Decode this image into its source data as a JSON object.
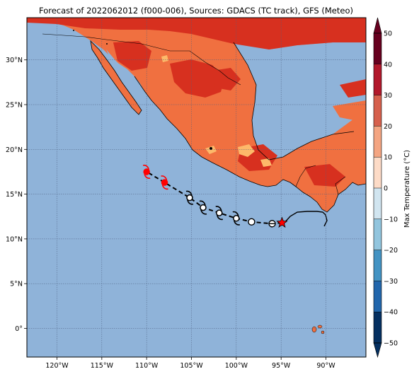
{
  "title": "Forecast of 2022062012 (f000-006), Sources: GDACS (TC track), GFS (Meteo)",
  "map": {
    "lon_ticks": [
      {
        "value": -120,
        "label": "120°W"
      },
      {
        "value": -115,
        "label": "115°W"
      },
      {
        "value": -110,
        "label": "110°W"
      },
      {
        "value": -105,
        "label": "105°W"
      },
      {
        "value": -100,
        "label": "100°W"
      },
      {
        "value": -95,
        "label": "95°W"
      },
      {
        "value": -90,
        "label": "90°W"
      }
    ],
    "lat_ticks": [
      {
        "value": 30,
        "label": "30°N"
      },
      {
        "value": 25,
        "label": "25°N"
      },
      {
        "value": 20,
        "label": "20°N"
      },
      {
        "value": 15,
        "label": "15°N"
      },
      {
        "value": 10,
        "label": "10°N"
      },
      {
        "value": 5,
        "label": "5°N"
      },
      {
        "value": 0,
        "label": "0°"
      }
    ],
    "ocean_color": "#8fb3d9",
    "land_color": "#f07040",
    "hot_color": "#d7301f",
    "warm_color": "#fdb96a"
  },
  "track": {
    "current_position": {
      "lon": -94.9,
      "lat": 11.8,
      "marker": "star"
    },
    "points": [
      {
        "lon": -96.0,
        "lat": 11.7,
        "symbol": "circle-minus",
        "color": "#000000"
      },
      {
        "lon": -98.3,
        "lat": 11.9,
        "symbol": "circle",
        "color": "#000000"
      },
      {
        "lon": -100.0,
        "lat": 12.3,
        "symbol": "hurricane",
        "color": "#000000"
      },
      {
        "lon": -101.9,
        "lat": 12.9,
        "symbol": "hurricane",
        "color": "#000000"
      },
      {
        "lon": -103.7,
        "lat": 13.5,
        "symbol": "hurricane",
        "color": "#000000"
      },
      {
        "lon": -105.2,
        "lat": 14.6,
        "symbol": "hurricane",
        "color": "#000000"
      },
      {
        "lon": -108.0,
        "lat": 16.3,
        "symbol": "hurricane",
        "color": "#ff0000"
      },
      {
        "lon": -110.0,
        "lat": 17.5,
        "symbol": "hurricane",
        "color": "#ff0000"
      }
    ]
  },
  "colorbar": {
    "label": "Max Temperature (°C)",
    "ticks": [
      "50",
      "40",
      "30",
      "20",
      "10",
      "0",
      "−10",
      "−20",
      "−30",
      "−40",
      "−50"
    ],
    "colors": [
      "#67001f",
      "#b2182b",
      "#d6604d",
      "#f4a582",
      "#fddbc7",
      "#f7f7f7",
      "#d1e5f0",
      "#92c5de",
      "#4393c3",
      "#2166ac",
      "#053061"
    ],
    "extend": "both"
  }
}
